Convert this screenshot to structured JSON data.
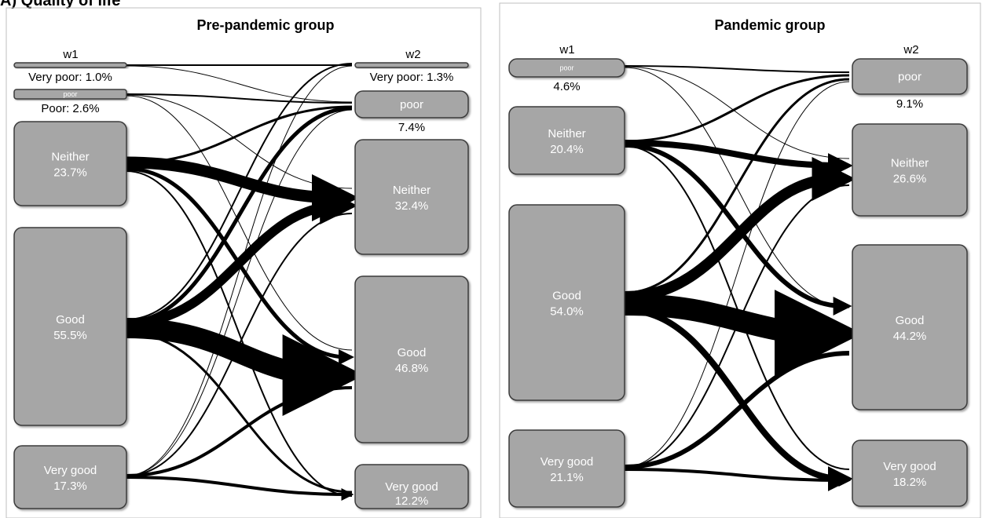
{
  "figure_title": "A) Quality of life",
  "colors": {
    "node_fill": "#a6a6a6",
    "node_stroke": "#3a3a3a",
    "flow": "#000000",
    "panel_border": "#bfbfbf"
  },
  "panels": [
    {
      "id": "pre",
      "title": "Pre-pandemic group",
      "wave_left": "w1",
      "wave_right": "w2",
      "left_nodes": [
        {
          "id": "vp",
          "label_outside": "Very poor: 1.0%"
        },
        {
          "id": "p",
          "inner": "poor",
          "label_outside": "Poor: 2.6%"
        },
        {
          "id": "n",
          "name": "Neither",
          "pct": "23.7%"
        },
        {
          "id": "g",
          "name": "Good",
          "pct": "55.5%"
        },
        {
          "id": "vg",
          "name": "Very good",
          "pct": "17.3%"
        }
      ],
      "right_nodes": [
        {
          "id": "vp",
          "label_outside": "Very poor: 1.3%"
        },
        {
          "id": "p",
          "name": "poor",
          "label_outside": "7.4%"
        },
        {
          "id": "n",
          "name": "Neither",
          "pct": "32.4%"
        },
        {
          "id": "g",
          "name": "Good",
          "pct": "46.8%"
        },
        {
          "id": "vg",
          "name": "Very good",
          "pct": "12.2%"
        }
      ]
    },
    {
      "id": "pan",
      "title": "Pandemic group",
      "wave_left": "w1",
      "wave_right": "w2",
      "left_nodes": [
        {
          "id": "p",
          "inner": "poor",
          "label_outside": "4.6%"
        },
        {
          "id": "n",
          "name": "Neither",
          "pct": "20.4%"
        },
        {
          "id": "g",
          "name": "Good",
          "pct": "54.0%"
        },
        {
          "id": "vg",
          "name": "Very good",
          "pct": "21.1%"
        }
      ],
      "right_nodes": [
        {
          "id": "p",
          "name": "poor",
          "label_outside": "9.1%"
        },
        {
          "id": "n",
          "name": "Neither",
          "pct": "26.6%"
        },
        {
          "id": "g",
          "name": "Good",
          "pct": "44.2%"
        },
        {
          "id": "vg",
          "name": "Very good",
          "pct": "18.2%"
        }
      ]
    }
  ]
}
